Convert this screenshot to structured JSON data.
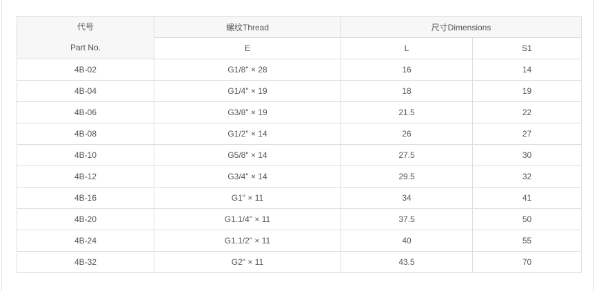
{
  "header": {
    "part_cn": "代号",
    "part_en": "Part No.",
    "thread": "螺纹Thread",
    "dimensions": "尺寸Dimensions",
    "e": "E",
    "l": "L",
    "s1": "S1"
  },
  "rows": [
    {
      "part": "4B-02",
      "thread": "G1/8\" × 28",
      "l": "16",
      "s1": "14"
    },
    {
      "part": "4B-04",
      "thread": "G1/4\" × 19",
      "l": "18",
      "s1": "19"
    },
    {
      "part": "4B-06",
      "thread": "G3/8\" × 19",
      "l": "21.5",
      "s1": "22"
    },
    {
      "part": "4B-08",
      "thread": "G1/2\" × 14",
      "l": "26",
      "s1": "27"
    },
    {
      "part": "4B-10",
      "thread": "G5/8\" × 14",
      "l": "27.5",
      "s1": "30"
    },
    {
      "part": "4B-12",
      "thread": "G3/4\" × 14",
      "l": "29.5",
      "s1": "32"
    },
    {
      "part": "4B-16",
      "thread": "G1\" × 11",
      "l": "34",
      "s1": "41"
    },
    {
      "part": "4B-20",
      "thread": "G1.1/4\" × 11",
      "l": "37.5",
      "s1": "50"
    },
    {
      "part": "4B-24",
      "thread": "G1.1/2\" × 11",
      "l": "40",
      "s1": "55"
    },
    {
      "part": "4B-32",
      "thread": "G2\" × 11",
      "l": "43.5",
      "s1": "70"
    }
  ]
}
